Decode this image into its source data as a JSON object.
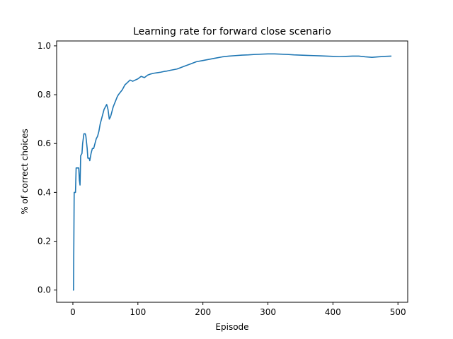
{
  "chart_data": {
    "type": "line",
    "title": "Learning rate for forward close scenario",
    "xlabel": "Episode",
    "ylabel": "% of correct choices",
    "xlim": [
      -25,
      515
    ],
    "ylim": [
      -0.05,
      1.02
    ],
    "x_ticks": [
      0,
      100,
      200,
      300,
      400,
      500
    ],
    "y_ticks": [
      0.0,
      0.2,
      0.4,
      0.6,
      0.8,
      1.0
    ],
    "x_tick_labels": [
      "0",
      "100",
      "200",
      "300",
      "400",
      "500"
    ],
    "y_tick_labels": [
      "0.0",
      "0.2",
      "0.4",
      "0.6",
      "0.8",
      "1.0"
    ],
    "grid": false,
    "legend": "none",
    "series": [
      {
        "color": "#1f77b4",
        "x": [
          0,
          1,
          2,
          3,
          4,
          5,
          6,
          8,
          9,
          10,
          11,
          12,
          14,
          15,
          17,
          19,
          20,
          22,
          23,
          25,
          26,
          28,
          30,
          32,
          34,
          36,
          38,
          40,
          42,
          44,
          46,
          48,
          50,
          52,
          54,
          56,
          58,
          60,
          62,
          65,
          68,
          70,
          73,
          76,
          80,
          84,
          88,
          92,
          96,
          100,
          105,
          110,
          115,
          120,
          125,
          130,
          135,
          140,
          145,
          150,
          160,
          170,
          180,
          190,
          200,
          210,
          220,
          230,
          240,
          250,
          260,
          270,
          280,
          290,
          300,
          310,
          320,
          330,
          340,
          350,
          360,
          370,
          380,
          390,
          400,
          410,
          420,
          430,
          440,
          450,
          460,
          470,
          480,
          490
        ],
        "y": [
          0.0,
          0.0,
          0.4,
          0.4,
          0.4,
          0.5,
          0.5,
          0.5,
          0.5,
          0.45,
          0.43,
          0.55,
          0.56,
          0.6,
          0.64,
          0.64,
          0.63,
          0.58,
          0.54,
          0.54,
          0.53,
          0.56,
          0.58,
          0.58,
          0.6,
          0.62,
          0.63,
          0.65,
          0.68,
          0.7,
          0.72,
          0.74,
          0.75,
          0.76,
          0.74,
          0.7,
          0.71,
          0.73,
          0.75,
          0.77,
          0.79,
          0.8,
          0.81,
          0.82,
          0.84,
          0.85,
          0.86,
          0.855,
          0.86,
          0.865,
          0.875,
          0.87,
          0.88,
          0.885,
          0.888,
          0.89,
          0.892,
          0.895,
          0.897,
          0.9,
          0.905,
          0.915,
          0.925,
          0.935,
          0.94,
          0.945,
          0.95,
          0.955,
          0.958,
          0.96,
          0.962,
          0.963,
          0.965,
          0.966,
          0.967,
          0.967,
          0.966,
          0.965,
          0.963,
          0.962,
          0.961,
          0.96,
          0.959,
          0.958,
          0.957,
          0.956,
          0.957,
          0.958,
          0.958,
          0.955,
          0.953,
          0.955,
          0.957,
          0.958
        ]
      }
    ]
  }
}
